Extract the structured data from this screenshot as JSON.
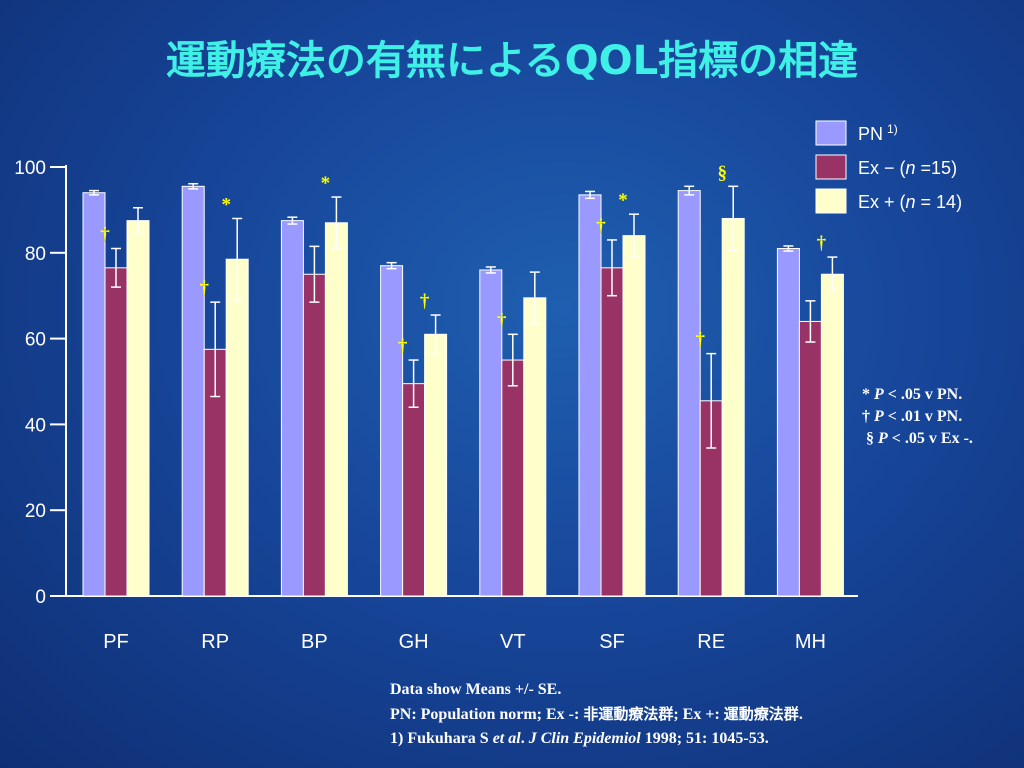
{
  "page": {
    "title": "運動療法の有無によるQOL指標の相違"
  },
  "legend": {
    "pn_label": "PN",
    "pn_sup": "1)",
    "exm_prefix": "Ex − (",
    "exm_n": "n",
    "exm_suffix": " =15)",
    "exp_prefix": "Ex + (",
    "exp_n": "n",
    "exp_suffix": " = 14)"
  },
  "notes": {
    "line1_sym": "* ",
    "line1_p": "P",
    "line1_text": " < .05 v PN.",
    "line2_sym": "† ",
    "line2_p": "P",
    "line2_text": " < .01 v PN.",
    "line3_sym": "§ ",
    "line3_p": "P",
    "line3_text": " < .05 v Ex -."
  },
  "footer": {
    "line1": "Data show Means +/- SE.",
    "line2_a": "PN: Population norm; Ex -: ",
    "line2_b": "非運動療法群",
    "line2_c": "; Ex +: ",
    "line2_d": "運動療法群",
    "line2_e": ".",
    "line3_a": "1) Fukuhara S ",
    "line3_b": "et al",
    "line3_c": ". ",
    "line3_d": "J Clin Epidemiol",
    "line3_e": " 1998; 51: 1045-53."
  },
  "colors": {
    "pn": "#9999ff",
    "exm": "#993366",
    "exp": "#ffffcc",
    "title": "#3ef0e6",
    "marker": "#ffff00",
    "axis": "#ffffff"
  },
  "chart_data": {
    "type": "bar",
    "categories": [
      "PF",
      "RP",
      "BP",
      "GH",
      "VT",
      "SF",
      "RE",
      "MH"
    ],
    "yticks": [
      "0",
      "20",
      "40",
      "60",
      "80",
      "100"
    ],
    "ylim": [
      0,
      100
    ],
    "series": [
      {
        "name": "PN",
        "values": [
          94,
          95.5,
          87.5,
          77,
          76,
          93.5,
          94.5,
          81
        ],
        "err": [
          0.5,
          0.6,
          0.8,
          0.7,
          0.7,
          0.8,
          1.0,
          0.6
        ]
      },
      {
        "name": "Ex −",
        "values": [
          76.5,
          57.5,
          75,
          49.5,
          55,
          76.5,
          45.5,
          64
        ],
        "err": [
          4.5,
          11,
          6.5,
          5.5,
          6,
          6.5,
          11,
          4.8
        ]
      },
      {
        "name": "Ex +",
        "values": [
          87.5,
          78.5,
          87,
          61,
          69.5,
          84,
          88,
          75
        ],
        "err": [
          3,
          9.5,
          6,
          4.5,
          6,
          5,
          7.5,
          4
        ]
      }
    ],
    "markers": [
      {
        "category": "PF",
        "series": 1,
        "symbol": "†"
      },
      {
        "category": "RP",
        "series": 1,
        "symbol": "†"
      },
      {
        "category": "RP",
        "series": 2,
        "symbol": "*"
      },
      {
        "category": "BP",
        "series": 2,
        "symbol": "*"
      },
      {
        "category": "GH",
        "series": 1,
        "symbol": "†"
      },
      {
        "category": "GH",
        "series": 2,
        "symbol": "†"
      },
      {
        "category": "VT",
        "series": 1,
        "symbol": "†"
      },
      {
        "category": "SF",
        "series": 1,
        "symbol": "†"
      },
      {
        "category": "SF",
        "series": 2,
        "symbol": "*"
      },
      {
        "category": "RE",
        "series": 1,
        "symbol": "†"
      },
      {
        "category": "RE",
        "series": 2,
        "symbol": "§"
      },
      {
        "category": "MH",
        "series": 2,
        "symbol": "†"
      }
    ]
  }
}
